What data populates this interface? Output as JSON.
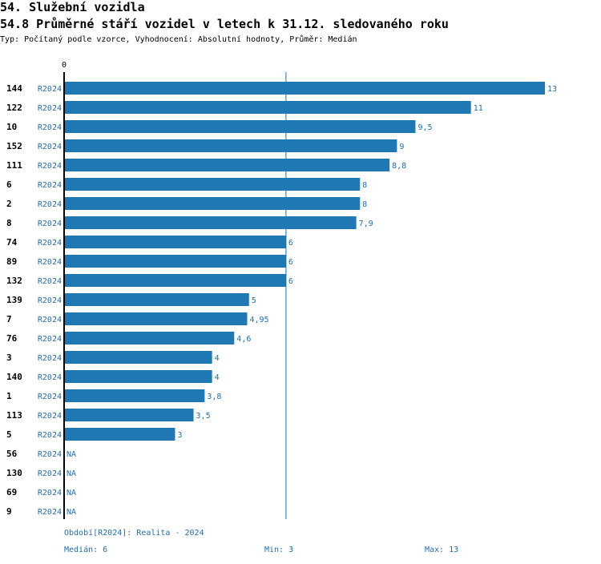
{
  "header": {
    "section_title": "54. Služební vozidla",
    "chart_title": "54.8 Průměrné stáří vozidel v letech k 31.12. sledovaného roku",
    "subtitle": "Typ: Počítaný podle vzorce, Vyhodnocení: Absolutní hodnoty, Průměr: Medián"
  },
  "chart_data": {
    "type": "bar",
    "orientation": "horizontal",
    "title": "54.8 Průměrné stáří vozidel v letech k 31.12. sledovaného roku",
    "axis_zero_label": "0",
    "series_label": "R2024",
    "xlim": [
      0,
      13.3
    ],
    "median_line": 6,
    "categories": [
      "144",
      "122",
      "10",
      "152",
      "111",
      "6",
      "2",
      "8",
      "74",
      "89",
      "132",
      "139",
      "7",
      "76",
      "3",
      "140",
      "1",
      "113",
      "5",
      "56",
      "130",
      "69",
      "9"
    ],
    "values": [
      13,
      11,
      9.5,
      9,
      8.8,
      8,
      8,
      7.9,
      6,
      6,
      6,
      5,
      4.95,
      4.6,
      4,
      4,
      3.8,
      3.5,
      3,
      null,
      null,
      null,
      null
    ],
    "value_labels": [
      "13",
      "11",
      "9,5",
      "9",
      "8,8",
      "8",
      "8",
      "7,9",
      "6",
      "6",
      "6",
      "5",
      "4,95",
      "4,6",
      "4",
      "4",
      "3,8",
      "3,5",
      "3",
      "NA",
      "NA",
      "NA",
      "NA"
    ],
    "colors": {
      "bar": "#1f77b4",
      "text": "#1f6fb2",
      "axis": "#000000",
      "median": "#1f6fb2"
    }
  },
  "footer": {
    "period": "Období[R2024]: Realita - 2024",
    "median": "Medián: 6",
    "min": "Min: 3",
    "max": "Max: 13"
  }
}
